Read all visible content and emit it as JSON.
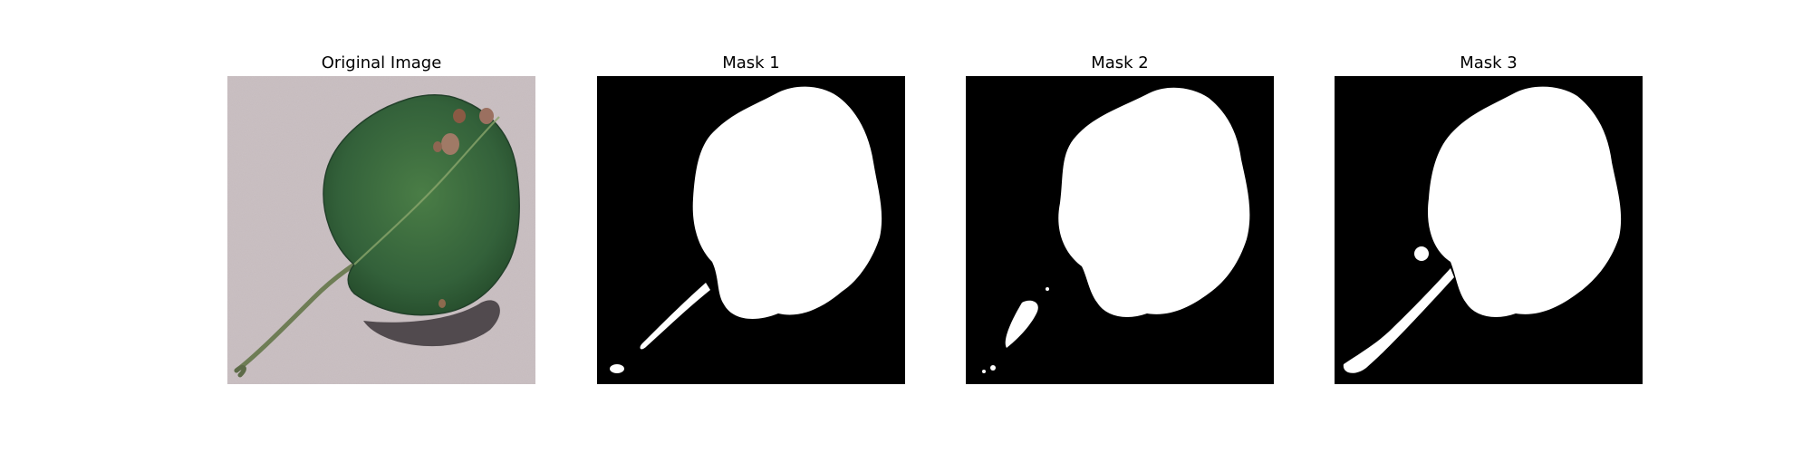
{
  "panels": [
    {
      "title": "Original Image",
      "kind": "photo"
    },
    {
      "title": "Mask 1",
      "kind": "mask"
    },
    {
      "title": "Mask 2",
      "kind": "mask"
    },
    {
      "title": "Mask 3",
      "kind": "mask"
    }
  ],
  "colors": {
    "background": "#c7bcbf",
    "leaf": "#2f5e32",
    "leaf_shadow": "#3f3a3d",
    "mask_bg": "#000000",
    "mask_fg": "#ffffff"
  }
}
